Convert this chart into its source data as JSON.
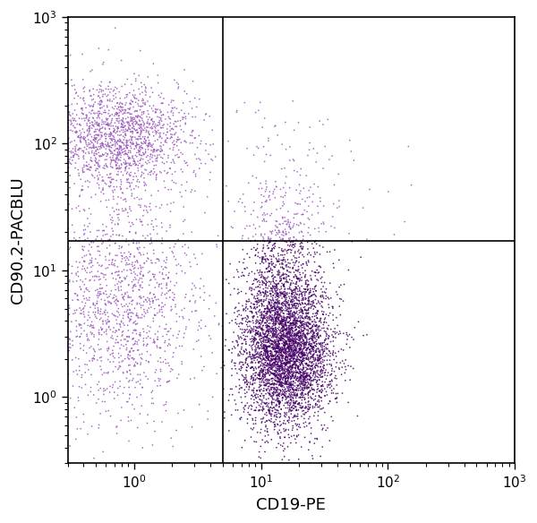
{
  "xlabel": "CD19-PE",
  "ylabel": "CD90.2-PACBLU",
  "xlim": [
    0.3,
    1000
  ],
  "ylim": [
    0.3,
    1000
  ],
  "dot_color_light": "#9955bb",
  "dot_color_dark": "#440066",
  "gate_x": 5.0,
  "gate_y": 17.0,
  "dot_size": 1.5,
  "dot_alpha": 0.85,
  "seed": 42
}
